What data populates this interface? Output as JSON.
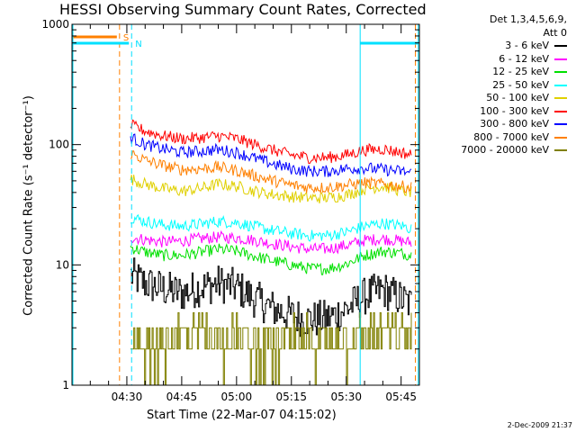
{
  "title": "HESSI Observing Summary Count Rates, Corrected",
  "legend_header_1": "Det 1,3,4,5,6,9,",
  "legend_header_2": "Att 0",
  "timestamp": "2-Dec-2009 21:37",
  "chart_data": {
    "type": "line",
    "title": "HESSI Observing Summary Count Rates, Corrected",
    "xlabel": "Start Time (22-Mar-07 04:15:02)",
    "ylabel": "Corrected Count Rate (s⁻¹ detector⁻¹)",
    "yscale": "log",
    "ylim": [
      1,
      1000
    ],
    "xlim_minutes": [
      0,
      95
    ],
    "yticks": [
      1,
      10,
      100,
      1000
    ],
    "ytick_labels": [
      "1",
      "10",
      "100",
      "1000"
    ],
    "xticks_minutes": [
      15,
      30,
      45,
      60,
      75,
      90
    ],
    "xtick_labels": [
      "04:30",
      "04:45",
      "05:00",
      "05:15",
      "05:30",
      "05:45"
    ],
    "markers": [
      {
        "label": "S",
        "minute": 13.0,
        "color": "#ff8000"
      },
      {
        "label": "N",
        "minute": 16.3,
        "color": "#00e0ff"
      }
    ],
    "vlines": [
      {
        "minute": 78.8,
        "color": "#00e0ff",
        "style": "solid"
      },
      {
        "minute": 93.9,
        "color": "#ff8000",
        "style": "dashed"
      },
      {
        "minute": 94.7,
        "color": "#00e0ff",
        "style": "solid"
      }
    ],
    "x": [
      16,
      20,
      25,
      30,
      35,
      40,
      45,
      50,
      55,
      60,
      65,
      70,
      75,
      80,
      85,
      90,
      93
    ],
    "series": [
      {
        "name": "3 - 6 keV",
        "color": "#000000",
        "values": [
          8.2,
          7.0,
          6.3,
          5.8,
          6.5,
          7.0,
          6.5,
          5.2,
          4.3,
          3.8,
          3.5,
          3.6,
          4.3,
          5.5,
          6.2,
          5.2,
          4.6
        ]
      },
      {
        "name": "6 - 12 keV",
        "color": "#ff00ff",
        "values": [
          17.0,
          16.2,
          15.5,
          15.8,
          16.5,
          17.0,
          16.8,
          16.0,
          15.0,
          14.2,
          13.5,
          13.6,
          14.5,
          16.0,
          16.5,
          15.8,
          15.2
        ]
      },
      {
        "name": "12 - 25 keV",
        "color": "#00e000",
        "values": [
          14.0,
          12.8,
          12.0,
          12.0,
          12.7,
          13.5,
          13.0,
          11.8,
          10.8,
          10.0,
          9.3,
          9.3,
          10.2,
          12.0,
          13.0,
          12.5,
          12.0
        ]
      },
      {
        "name": "25 - 50 keV",
        "color": "#00ffff",
        "values": [
          25.0,
          23.0,
          21.5,
          21.0,
          21.8,
          23.0,
          22.5,
          20.8,
          19.3,
          18.2,
          17.5,
          17.6,
          18.7,
          21.0,
          22.2,
          21.2,
          20.0
        ]
      },
      {
        "name": "50 - 100 keV",
        "color": "#e0d000",
        "values": [
          52.0,
          47.0,
          43.0,
          41.0,
          43.0,
          47.0,
          45.0,
          41.0,
          38.5,
          37.0,
          36.0,
          36.2,
          38.0,
          43.0,
          45.0,
          41.5,
          40.0
        ]
      },
      {
        "name": "100 - 300 keV",
        "color": "#ff0000",
        "values": [
          145.0,
          130.0,
          118.0,
          112.0,
          114.0,
          118.0,
          112.0,
          100.0,
          90.0,
          82.0,
          78.0,
          78.0,
          82.0,
          90.0,
          92.0,
          86.0,
          82.0
        ]
      },
      {
        "name": "300 - 800 keV",
        "color": "#0000ff",
        "values": [
          115.0,
          100.0,
          92.0,
          86.0,
          88.0,
          91.0,
          86.0,
          77.0,
          69.0,
          63.0,
          60.0,
          60.0,
          63.0,
          64.0,
          62.0,
          60.0,
          58.0
        ]
      },
      {
        "name": "800 - 7000 keV",
        "color": "#ff8000",
        "values": [
          85.0,
          74.0,
          67.0,
          62.0,
          63.0,
          65.0,
          61.0,
          55.0,
          50.0,
          46.0,
          44.0,
          44.0,
          46.0,
          48.0,
          47.0,
          45.0,
          44.0
        ]
      },
      {
        "name": "7000 - 20000 keV",
        "color": "#808000",
        "values": [
          1.8,
          1.8,
          2.3,
          2.5,
          2.7,
          2.6,
          2.5,
          2.2,
          2.2,
          2.4,
          2.5,
          2.5,
          2.4,
          2.7,
          2.8,
          2.6,
          2.5
        ]
      }
    ]
  }
}
